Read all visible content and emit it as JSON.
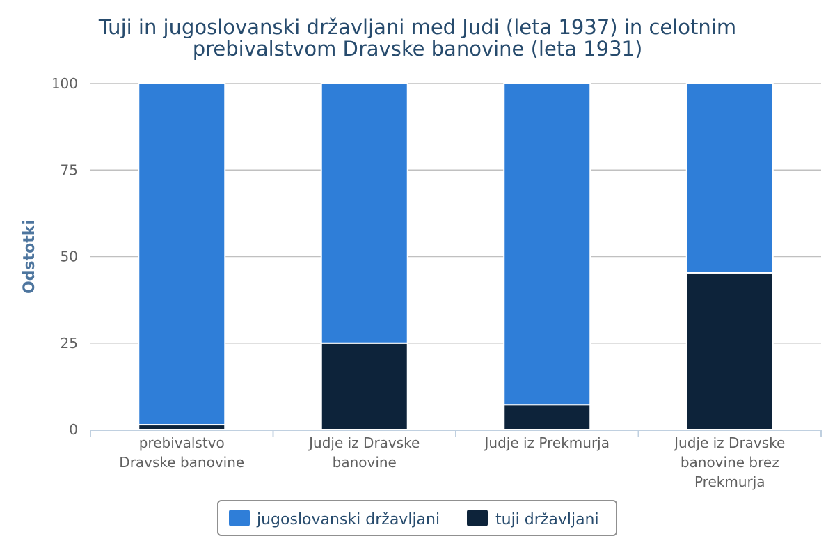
{
  "chart_data": {
    "type": "bar",
    "stacked": true,
    "title": [
      "Tuji in jugoslovanski državljani med Judi (leta 1937) in celotnim",
      "prebivalstvom Dravske banovine (leta 1931)"
    ],
    "ylabel": "Odstotki",
    "ylim": [
      0,
      100
    ],
    "yticks": [
      0,
      25,
      50,
      75,
      100
    ],
    "grid": true,
    "legend_position": "bottom",
    "categories": [
      [
        "prebivalstvo",
        "Dravske banovine"
      ],
      [
        "Judje iz Dravske",
        "banovine"
      ],
      [
        "Judje iz Prekmurja"
      ],
      [
        "Judje iz Dravske",
        "banovine brez",
        "Prekmurja"
      ]
    ],
    "series": [
      {
        "name": "jugoslovanski državljani",
        "color": "#2f7ed8",
        "values": [
          98.6,
          75,
          92.8,
          54.7
        ]
      },
      {
        "name": "tuji državljani",
        "color": "#0d233a",
        "values": [
          1.4,
          25,
          7.2,
          45.3
        ]
      }
    ]
  }
}
